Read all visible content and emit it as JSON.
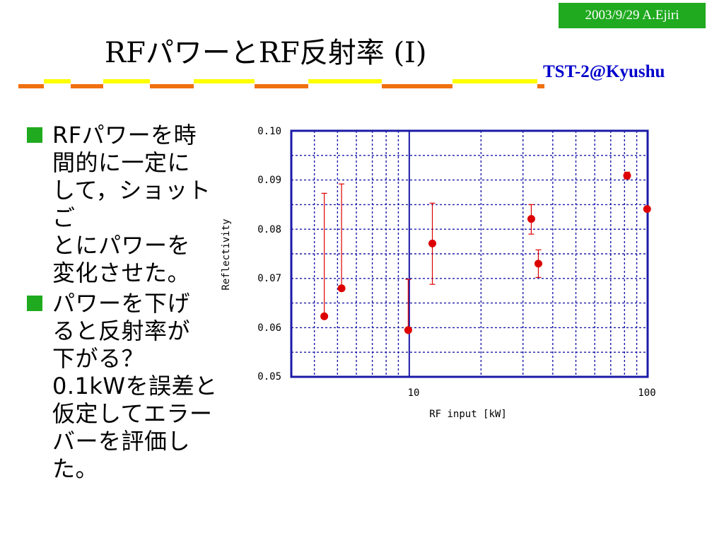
{
  "header": {
    "date_author": "2003/9/29 A.Ejiri",
    "title": "RFパワーとRF反射率 (I)",
    "affiliation": "TST-2@Kyushu"
  },
  "colors": {
    "accent_green": "#1faa1f",
    "rule_orange": "#f07010",
    "rule_yellow": "#ffff00",
    "affiliation_blue": "#0000cc",
    "chart_axis_blue": "#1a1aa8",
    "marker_red": "#dd0000"
  },
  "bullets": [
    {
      "text": "RFパワーを時\n間的に一定に\nして，ショットご\nとにパワーを\n変化させた。"
    },
    {
      "text": "パワーを下げ\nると反射率が\n下がる？\n0.1kWを誤差と\n仮定してエラー\nバーを評価し\nた。"
    }
  ],
  "chart_data": {
    "type": "scatter",
    "xlabel": "RF input [kW]",
    "ylabel": "Reflectivity",
    "xscale": "log",
    "xlim": [
      3.2,
      100
    ],
    "ylim": [
      0.05,
      0.1
    ],
    "grid": true,
    "xtick_labels": [
      "10",
      "100"
    ],
    "ytick_labels": [
      "0.10",
      "0.09",
      "0.08",
      "0.07",
      "0.06",
      "0.05"
    ],
    "points": [
      {
        "x": 4.4,
        "y": 0.0623,
        "err_low": 0.0623,
        "err_high": 0.0873
      },
      {
        "x": 5.2,
        "y": 0.068,
        "err_low": 0.068,
        "err_high": 0.0892
      },
      {
        "x": 9.9,
        "y": 0.0595,
        "err_low": 0.0595,
        "err_high": 0.0698
      },
      {
        "x": 12.5,
        "y": 0.0771,
        "err_low": 0.0688,
        "err_high": 0.0853
      },
      {
        "x": 32.5,
        "y": 0.0821,
        "err_low": 0.079,
        "err_high": 0.085
      },
      {
        "x": 34.8,
        "y": 0.073,
        "err_low": 0.0702,
        "err_high": 0.0758
      },
      {
        "x": 82,
        "y": 0.0909,
        "err_low": 0.0902,
        "err_high": 0.0916
      },
      {
        "x": 99.5,
        "y": 0.0841,
        "err_low": 0.0841,
        "err_high": 0.0841
      }
    ]
  }
}
